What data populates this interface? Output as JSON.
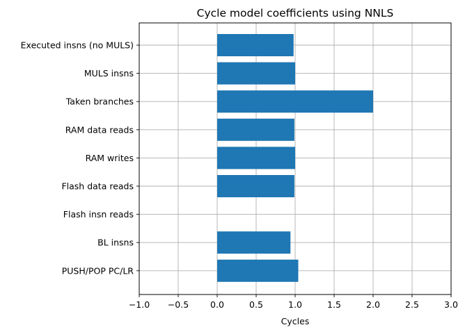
{
  "chart_data": {
    "type": "bar",
    "orientation": "horizontal",
    "title": "Cycle model coefficients using NNLS",
    "xlabel": "Cycles",
    "ylabel": "",
    "xlim": [
      -1.0,
      3.0
    ],
    "x_ticks": [
      -1.0,
      -0.5,
      0.0,
      0.5,
      1.0,
      1.5,
      2.0,
      2.5,
      3.0
    ],
    "x_tick_labels": [
      "−1.0",
      "−0.5",
      "0.0",
      "0.5",
      "1.0",
      "1.5",
      "2.0",
      "2.5",
      "3.0"
    ],
    "grid": true,
    "bar_color": "#1f77b4",
    "categories": [
      "Executed insns (no MULS)",
      "MULS insns",
      "Taken branches",
      "RAM data reads",
      "RAM writes",
      "Flash data reads",
      "Flash insn reads",
      "BL insns",
      "PUSH/POP PC/LR"
    ],
    "values": [
      0.98,
      1.0,
      2.0,
      0.99,
      1.0,
      0.99,
      0.0,
      0.94,
      1.04
    ]
  }
}
